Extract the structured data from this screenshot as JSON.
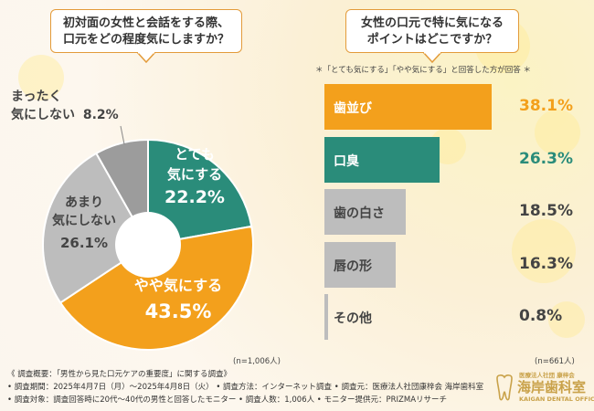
{
  "left_question": {
    "line1": "初対面の女性と会話をする際、",
    "line2": "口元をどの程度気にしますか？"
  },
  "right_question": {
    "line1": "女性の口元で特に気になる",
    "line2": "ポイントはどこですか？"
  },
  "right_note": "＊「とても気にする」「やや気にする」と回答した方が回答 ＊",
  "left_n": "(n=1,006人)",
  "right_n": "(n=661人)",
  "colors": {
    "teal": "#2a8c7a",
    "orange": "#f3a01c",
    "gray": "#bdbdbd",
    "dark_gray": "#9c9c9c",
    "accent": "#e39b3a"
  },
  "chart_data": [
    {
      "type": "pie",
      "title": "初対面の女性と会話をする際、口元をどの程度気にしますか？",
      "slices": [
        {
          "label": "とても気にする",
          "label_line1": "とても",
          "label_line2": "気にする",
          "value": 22.2,
          "display": "22.2%",
          "color": "#2a8c7a"
        },
        {
          "label": "やや気にする",
          "label_line1": "やや気にする",
          "value": 43.5,
          "display": "43.5%",
          "color": "#f3a01c"
        },
        {
          "label": "あまり気にしない",
          "label_line1": "あまり",
          "label_line2": "気にしない",
          "value": 26.1,
          "display": "26.1%",
          "color": "#bdbdbd"
        },
        {
          "label": "まったく気にしない",
          "label_line1": "まったく",
          "label_line2": "気にしない",
          "value": 8.2,
          "display": "8.2%",
          "color": "#9c9c9c"
        }
      ]
    },
    {
      "type": "bar",
      "orientation": "horizontal",
      "title": "女性の口元で特に気になるポイントはどこですか？",
      "categories": [
        "歯並び",
        "口臭",
        "歯の白さ",
        "唇の形",
        "その他"
      ],
      "values": [
        38.1,
        26.3,
        18.5,
        16.3,
        0.8
      ],
      "display": [
        "38.1%",
        "26.3%",
        "18.5%",
        "16.3%",
        "0.8%"
      ],
      "xlim": [
        0,
        40
      ]
    }
  ],
  "footer": {
    "line1": "《 調査概要：「男性から見た口元ケアの重要度」に関する調査》",
    "line2": "• 調査期間：2025年4月7日（月）～2025年4月8日（火）  • 調査方法：インターネット調査   • 調査元：医療法人社団康梓会 海岸歯科室",
    "line3": "• 調査対象：調査回答時に20代～40代の男性と回答したモニター    • 調査人数：1,006人  • モニター提供元：PRIZMAリサーチ"
  },
  "logo": {
    "subtitle": "医療法人社団 康梓会",
    "name": "海岸歯科室",
    "english": "KAIGAN DENTAL OFFICE"
  }
}
